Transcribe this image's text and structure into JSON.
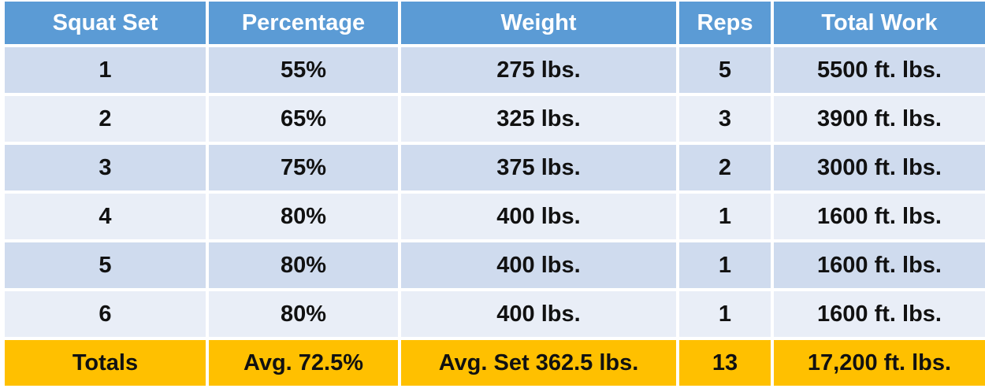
{
  "table": {
    "header": [
      "Squat Set",
      "Percentage",
      "Weight",
      "Reps",
      "Total Work"
    ],
    "rows": [
      [
        "1",
        "55%",
        "275 lbs.",
        "5",
        "5500 ft. lbs."
      ],
      [
        "2",
        "65%",
        "325 lbs.",
        "3",
        "3900 ft. lbs."
      ],
      [
        "3",
        "75%",
        "375 lbs.",
        "2",
        "3000 ft. lbs."
      ],
      [
        "4",
        "80%",
        "400 lbs.",
        "1",
        "1600 ft. lbs."
      ],
      [
        "5",
        "80%",
        "400 lbs.",
        "1",
        "1600 ft. lbs."
      ],
      [
        "6",
        "80%",
        "400 lbs.",
        "1",
        "1600 ft. lbs."
      ]
    ],
    "totals": [
      "Totals",
      "Avg. 72.5%",
      "Avg. Set 362.5 lbs.",
      "13",
      "17,200 ft. lbs."
    ]
  }
}
